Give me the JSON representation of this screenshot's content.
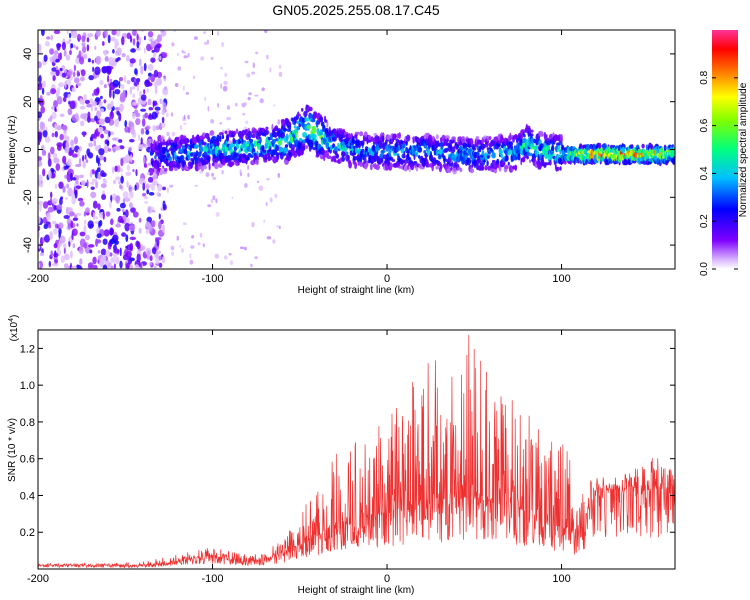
{
  "title": "GN05.2025.255.08.17.C45",
  "chart_data": [
    {
      "type": "heatmap",
      "title": "GN05.2025.255.08.17.C45",
      "xlabel": "Height of straight line (km)",
      "ylabel": "Frequency (Hz)",
      "xlim": [
        -200,
        165
      ],
      "ylim": [
        -50,
        50
      ],
      "x_ticks": [
        -200,
        -100,
        0,
        100
      ],
      "y_ticks": [
        -40,
        -20,
        0,
        20,
        40
      ],
      "colorbar": {
        "label": "Normalized spectral amplitude",
        "range": [
          0.0,
          1.0
        ],
        "ticks": [
          0.0,
          0.2,
          0.4,
          0.6,
          0.8
        ],
        "colors": [
          "#ffffff",
          "#d9b3ff",
          "#7f00ff",
          "#0000ff",
          "#00bfff",
          "#00ff7f",
          "#7fff00",
          "#ffff00",
          "#ff7f00",
          "#ff0000",
          "#ff3399"
        ]
      },
      "ridge": {
        "x": [
          -135,
          -120,
          -100,
          -80,
          -60,
          -50,
          -45,
          -40,
          -30,
          -20,
          0,
          20,
          40,
          60,
          75,
          80,
          85,
          100,
          120,
          140,
          165
        ],
        "y": [
          -3,
          -2,
          0,
          1,
          3,
          7,
          10,
          6,
          2,
          0,
          -1,
          -1,
          -2,
          -2,
          -1,
          3,
          0,
          -2,
          -2,
          -2,
          -2
        ],
        "peak_amplitude": [
          0.3,
          0.4,
          0.45,
          0.5,
          0.5,
          0.55,
          0.6,
          0.55,
          0.45,
          0.4,
          0.4,
          0.4,
          0.4,
          0.4,
          0.45,
          0.55,
          0.45,
          0.6,
          0.9,
          0.95,
          0.8
        ]
      },
      "noise_region_x": [
        -200,
        -135
      ]
    },
    {
      "type": "line",
      "xlabel": "Height of straight line (km)",
      "ylabel": "SNR (10 * v/v)",
      "y_multiplier": "(x10",
      "y_multiplier_exp": "4",
      "xlim": [
        -200,
        165
      ],
      "ylim": [
        0,
        1.3
      ],
      "x_ticks": [
        -200,
        -100,
        0,
        100
      ],
      "y_ticks": [
        0.2,
        0.4,
        0.6,
        0.8,
        1.0,
        1.2
      ],
      "color": "#ef3030",
      "series": [
        {
          "x": [
            -200,
            -180,
            -160,
            -140,
            -120,
            -110,
            -100,
            -90,
            -80,
            -70,
            -60,
            -50,
            -40,
            -30,
            -20,
            -10,
            0,
            10,
            20,
            30,
            40,
            50,
            60,
            70,
            80,
            90,
            100,
            110,
            120,
            130,
            140,
            150,
            160,
            165
          ],
          "values": [
            0.02,
            0.02,
            0.02,
            0.02,
            0.04,
            0.06,
            0.07,
            0.05,
            0.04,
            0.05,
            0.08,
            0.13,
            0.18,
            0.24,
            0.28,
            0.28,
            0.3,
            0.33,
            0.35,
            0.36,
            0.38,
            0.39,
            0.36,
            0.34,
            0.3,
            0.26,
            0.22,
            0.19,
            0.43,
            0.43,
            0.42,
            0.42,
            0.43,
            0.43
          ],
          "peak_envelope": [
            0.03,
            0.03,
            0.03,
            0.04,
            0.08,
            0.1,
            0.12,
            0.1,
            0.08,
            0.1,
            0.16,
            0.3,
            0.45,
            0.62,
            0.7,
            0.82,
            0.85,
            0.95,
            1.1,
            1.2,
            1.25,
            1.3,
            1.1,
            0.95,
            0.9,
            0.8,
            0.7,
            0.6,
            0.5,
            0.5,
            0.55,
            0.6,
            0.62,
            0.62
          ]
        }
      ]
    }
  ]
}
